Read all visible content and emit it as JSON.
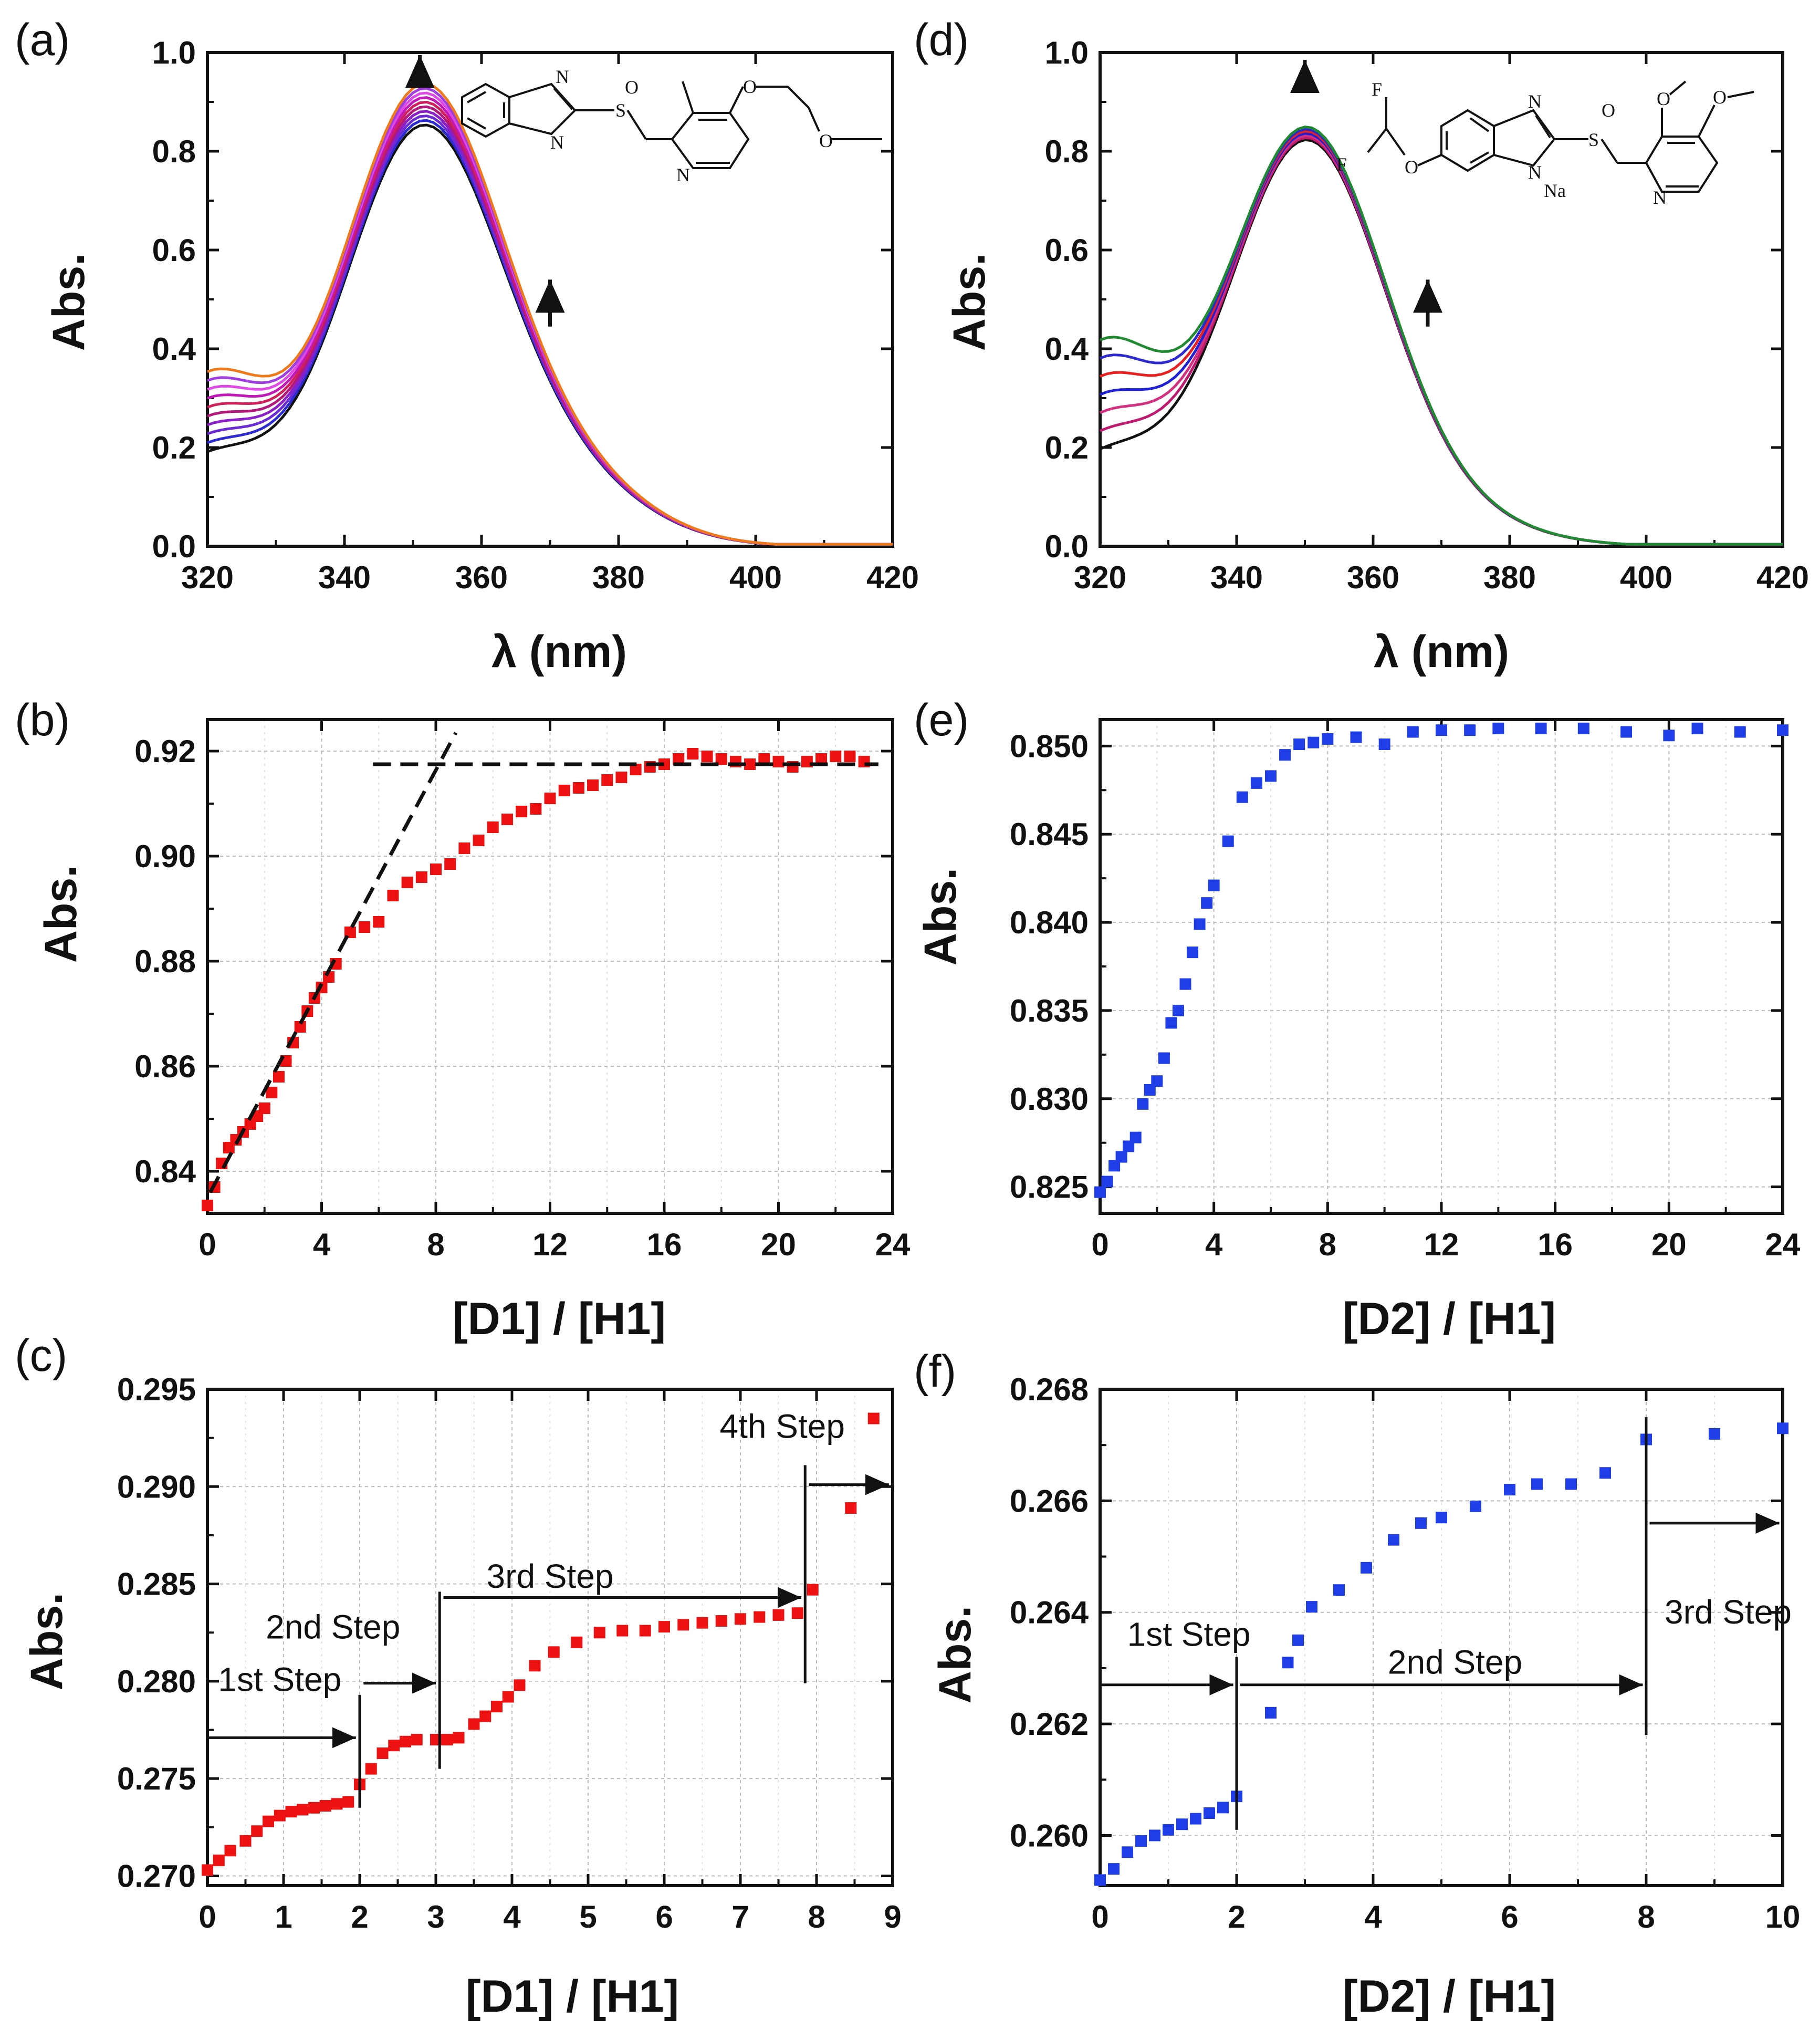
{
  "figure": {
    "panels": {
      "a": {
        "label": "(a)",
        "ylabel": "Abs.",
        "xlabel": "λ (nm)"
      },
      "b": {
        "label": "(b)",
        "ylabel": "Abs.",
        "xlabel": "[D1] / [H1]"
      },
      "c": {
        "label": "(c)",
        "ylabel": "Abs.",
        "xlabel": "[D1] / [H1]"
      },
      "d": {
        "label": "(d)",
        "ylabel": "Abs.",
        "xlabel": "λ (nm)"
      },
      "e": {
        "label": "(e)",
        "ylabel": "Abs.",
        "xlabel": "[D2] / [H1]"
      },
      "f": {
        "label": "(f)",
        "ylabel": "Abs.",
        "xlabel": "[D2] / [H1]"
      }
    },
    "structure_d_atoms": {
      "F1": "F",
      "F2": "F",
      "Na": "Na"
    }
  },
  "chart_data": [
    {
      "id": "a",
      "type": "line",
      "title": "",
      "xlabel": "λ (nm)",
      "ylabel": "Abs.",
      "xlim": [
        320,
        420
      ],
      "ylim": [
        0.0,
        1.0
      ],
      "xticks": [
        "320",
        "340",
        "360",
        "380",
        "400",
        "420"
      ],
      "yticks": [
        "0.0",
        "0.2",
        "0.4",
        "0.6",
        "0.8",
        "1.0"
      ],
      "series_description": "family of UV-vis spectra of H1 during titration with D1",
      "peak_nm": 351,
      "peak_abs_range": [
        0.84,
        0.92
      ],
      "abs_at_320_range": [
        0.21,
        0.37
      ],
      "annotation_arrows_nm": [
        351,
        370
      ],
      "colors": [
        "#111111",
        "#2b2bd1",
        "#6a2ad6",
        "#8a1ec8",
        "#b2187a",
        "#d01f5a",
        "#c218b8",
        "#e048e6",
        "#a03de0",
        "#f07a1a"
      ]
    },
    {
      "id": "b",
      "type": "scatter",
      "xlabel": "[D1] / [H1]",
      "ylabel": "Abs.",
      "xlim": [
        0,
        24
      ],
      "ylim": [
        0.832,
        0.926
      ],
      "xticks": [
        "0",
        "4",
        "8",
        "12",
        "16",
        "20",
        "24"
      ],
      "yticks": [
        "0.84",
        "0.86",
        "0.88",
        "0.90",
        "0.92"
      ],
      "color": "#ee1111",
      "x": [
        0,
        0.25,
        0.5,
        0.75,
        1,
        1.25,
        1.5,
        1.75,
        2,
        2.25,
        2.5,
        2.75,
        3,
        3.25,
        3.5,
        3.75,
        4,
        4.25,
        4.5,
        5,
        5.5,
        6,
        6.5,
        7,
        7.5,
        8,
        8.5,
        9,
        9.5,
        10,
        10.5,
        11,
        11.5,
        12,
        12.5,
        13,
        13.5,
        14,
        14.5,
        15,
        15.5,
        16,
        16.5,
        17,
        17.5,
        18,
        18.5,
        19,
        19.5,
        20,
        20.5,
        21,
        21.5,
        22,
        22.5,
        23
      ],
      "y": [
        0.8335,
        0.837,
        0.8415,
        0.8445,
        0.846,
        0.8475,
        0.849,
        0.8505,
        0.852,
        0.855,
        0.858,
        0.861,
        0.8645,
        0.8675,
        0.8705,
        0.873,
        0.875,
        0.877,
        0.8795,
        0.8855,
        0.8865,
        0.8875,
        0.8925,
        0.895,
        0.896,
        0.8975,
        0.8985,
        0.9015,
        0.903,
        0.9055,
        0.907,
        0.9085,
        0.909,
        0.911,
        0.9125,
        0.913,
        0.9135,
        0.9145,
        0.915,
        0.9165,
        0.917,
        0.9175,
        0.9185,
        0.9195,
        0.919,
        0.9185,
        0.918,
        0.9175,
        0.9185,
        0.918,
        0.917,
        0.918,
        0.9185,
        0.919,
        0.919,
        0.918
      ],
      "fit_lines": [
        {
          "style": "dashed",
          "from": [
            0.1,
            0.836
          ],
          "to": [
            8.7,
            0.9235
          ]
        },
        {
          "style": "dashed",
          "from": [
            5.8,
            0.9175
          ],
          "to": [
            23.5,
            0.9175
          ]
        }
      ]
    },
    {
      "id": "c",
      "type": "scatter",
      "xlabel": "[D1] / [H1]",
      "ylabel": "Abs.",
      "xlim": [
        0,
        9
      ],
      "ylim": [
        0.2695,
        0.295
      ],
      "xticks": [
        "0",
        "1",
        "2",
        "3",
        "4",
        "5",
        "6",
        "7",
        "8",
        "9"
      ],
      "yticks": [
        "0.270",
        "0.275",
        "0.280",
        "0.285",
        "0.290",
        "0.295"
      ],
      "color": "#ee1111",
      "x": [
        0,
        0.15,
        0.3,
        0.5,
        0.65,
        0.8,
        0.95,
        1.1,
        1.25,
        1.4,
        1.55,
        1.7,
        1.85,
        2.0,
        2.15,
        2.3,
        2.45,
        2.6,
        2.75,
        3.0,
        3.15,
        3.3,
        3.5,
        3.65,
        3.8,
        3.95,
        4.1,
        4.3,
        4.55,
        4.85,
        5.15,
        5.45,
        5.75,
        6.0,
        6.25,
        6.5,
        6.75,
        7.0,
        7.25,
        7.5,
        7.75,
        7.95,
        8.45,
        8.75
      ],
      "y": [
        0.2703,
        0.2708,
        0.2713,
        0.2718,
        0.2723,
        0.2728,
        0.2731,
        0.2733,
        0.2734,
        0.2735,
        0.2736,
        0.2737,
        0.2738,
        0.2747,
        0.2755,
        0.2763,
        0.2767,
        0.2769,
        0.277,
        0.277,
        0.277,
        0.2771,
        0.2778,
        0.2782,
        0.2787,
        0.2792,
        0.2798,
        0.2808,
        0.2815,
        0.282,
        0.2825,
        0.2826,
        0.2826,
        0.2828,
        0.2829,
        0.283,
        0.2831,
        0.2832,
        0.2833,
        0.2834,
        0.2835,
        0.2847,
        0.2889,
        0.2935
      ],
      "step_lines_x": [
        2.0,
        3.05,
        7.85
      ],
      "steps": [
        {
          "label": "1st Step",
          "arrow_x": [
            0.0,
            1.95
          ],
          "arrow_y": 0.2771,
          "label_x": 0.95,
          "label_y": 0.2795
        },
        {
          "label": "2nd Step",
          "arrow_x": [
            2.05,
            3.0
          ],
          "arrow_y": 0.2799,
          "label_x": 1.65,
          "label_y": 0.2822
        },
        {
          "label": "3rd Step",
          "arrow_x": [
            3.1,
            7.8
          ],
          "arrow_y": 0.2843,
          "label_x": 4.5,
          "label_y": 0.2848
        },
        {
          "label": "4th Step",
          "arrow_x": [
            7.9,
            8.95
          ],
          "arrow_y": 0.2901,
          "label_x": 7.55,
          "label_y": 0.2925
        }
      ]
    },
    {
      "id": "d",
      "type": "line",
      "title": "",
      "xlabel": "λ (nm)",
      "ylabel": "Abs.",
      "xlim": [
        320,
        420
      ],
      "ylim": [
        0.0,
        1.0
      ],
      "xticks": [
        "320",
        "340",
        "360",
        "380",
        "400",
        "420"
      ],
      "yticks": [
        "0.0",
        "0.2",
        "0.4",
        "0.6",
        "0.8",
        "1.0"
      ],
      "series_description": "family of UV-vis spectra of H1 during titration with D2",
      "peak_nm": 350,
      "peak_abs_range": [
        0.83,
        0.855
      ],
      "abs_at_320_range": [
        0.21,
        0.43
      ],
      "annotation_arrows_nm": [
        350,
        368
      ],
      "colors": [
        "#111111",
        "#c01a70",
        "#d33080",
        "#1f1fd6",
        "#ea2020",
        "#2a2ad0",
        "#1f8a2f"
      ]
    },
    {
      "id": "e",
      "type": "scatter",
      "xlabel": "[D2] / [H1]",
      "ylabel": "Abs.",
      "xlim": [
        0,
        24
      ],
      "ylim": [
        0.8235,
        0.8515
      ],
      "xticks": [
        "0",
        "4",
        "8",
        "12",
        "16",
        "20",
        "24"
      ],
      "yticks": [
        "0.825",
        "0.830",
        "0.835",
        "0.840",
        "0.845",
        "0.850"
      ],
      "color": "#1f3ee8",
      "x": [
        0,
        0.25,
        0.5,
        0.75,
        1,
        1.25,
        1.5,
        1.75,
        2,
        2.25,
        2.5,
        2.75,
        3,
        3.25,
        3.5,
        3.75,
        4,
        4.5,
        5,
        5.5,
        6,
        6.5,
        7,
        7.5,
        8,
        9,
        10,
        11,
        12,
        13,
        14,
        15.5,
        17,
        18.5,
        20,
        21,
        22.5,
        24
      ],
      "y": [
        0.8247,
        0.8253,
        0.8262,
        0.8267,
        0.8273,
        0.8278,
        0.8297,
        0.8305,
        0.831,
        0.8323,
        0.8343,
        0.835,
        0.8365,
        0.8383,
        0.8399,
        0.8411,
        0.8421,
        0.8446,
        0.8471,
        0.8479,
        0.8483,
        0.8495,
        0.8501,
        0.8502,
        0.8504,
        0.8505,
        0.8501,
        0.8508,
        0.8509,
        0.8509,
        0.851,
        0.851,
        0.851,
        0.8508,
        0.8506,
        0.851,
        0.8508,
        0.8509
      ]
    },
    {
      "id": "f",
      "type": "scatter",
      "xlabel": "[D2] / [H1]",
      "ylabel": "Abs.",
      "xlim": [
        0,
        10
      ],
      "ylim": [
        0.2591,
        0.268
      ],
      "xticks": [
        "0",
        "2",
        "4",
        "6",
        "8",
        "10"
      ],
      "yticks": [
        "0.260",
        "0.262",
        "0.264",
        "0.266",
        "0.268"
      ],
      "color": "#1f3ee8",
      "x": [
        0,
        0.2,
        0.4,
        0.6,
        0.8,
        1.0,
        1.2,
        1.4,
        1.6,
        1.8,
        2.0,
        2.5,
        2.75,
        2.9,
        3.1,
        3.5,
        3.9,
        4.3,
        4.7,
        5.0,
        5.5,
        6.0,
        6.4,
        6.9,
        7.4,
        8.0,
        9.0,
        10.0
      ],
      "y": [
        0.2592,
        0.2594,
        0.2597,
        0.2599,
        0.26,
        0.2601,
        0.2602,
        0.2603,
        0.2604,
        0.2605,
        0.2607,
        0.2622,
        0.2631,
        0.2635,
        0.2641,
        0.2644,
        0.2648,
        0.2653,
        0.2656,
        0.2657,
        0.2659,
        0.2662,
        0.2663,
        0.2663,
        0.2665,
        0.2671,
        0.2672,
        0.2673
      ],
      "step_lines_x": [
        2.0,
        8.0
      ],
      "steps": [
        {
          "label": "1st Step",
          "arrow_x": [
            0.0,
            1.95
          ],
          "arrow_y": 0.2627,
          "label_x": 1.3,
          "label_y": 0.2634
        },
        {
          "label": "2nd Step",
          "arrow_x": [
            2.05,
            7.95
          ],
          "arrow_y": 0.2627,
          "label_x": 5.2,
          "label_y": 0.2629
        },
        {
          "label": "3rd Step",
          "arrow_x": [
            8.05,
            9.95
          ],
          "arrow_y": 0.2656,
          "label_x": 9.2,
          "label_y": 0.2638
        }
      ]
    }
  ]
}
